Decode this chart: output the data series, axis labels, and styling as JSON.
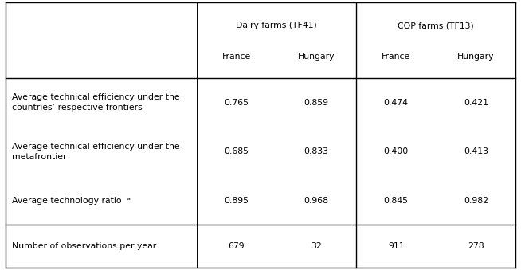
{
  "col_headers_top": [
    "Dairy farms (TF41)",
    "COP farms (TF13)"
  ],
  "col_headers_sub": [
    "France",
    "Hungary",
    "France",
    "Hungary"
  ],
  "rows": [
    {
      "label": "Average technical efficiency under the\ncountries’ respective frontiers",
      "values": [
        "0.765",
        "0.859",
        "0.474",
        "0.421"
      ]
    },
    {
      "label": "Average technical efficiency under the\nmetafrontier",
      "values": [
        "0.685",
        "0.833",
        "0.400",
        "0.413"
      ]
    },
    {
      "label": "Average technology ratio  ᵃ",
      "values": [
        "0.895",
        "0.968",
        "0.845",
        "0.982"
      ]
    }
  ],
  "bottom_row": {
    "label": "Number of observations per year",
    "values": [
      "679",
      "32",
      "911",
      "278"
    ]
  },
  "bg_color": "#ffffff",
  "line_color": "#000000",
  "font_size": 7.8,
  "figsize": [
    6.54,
    3.39
  ],
  "dpi": 100
}
